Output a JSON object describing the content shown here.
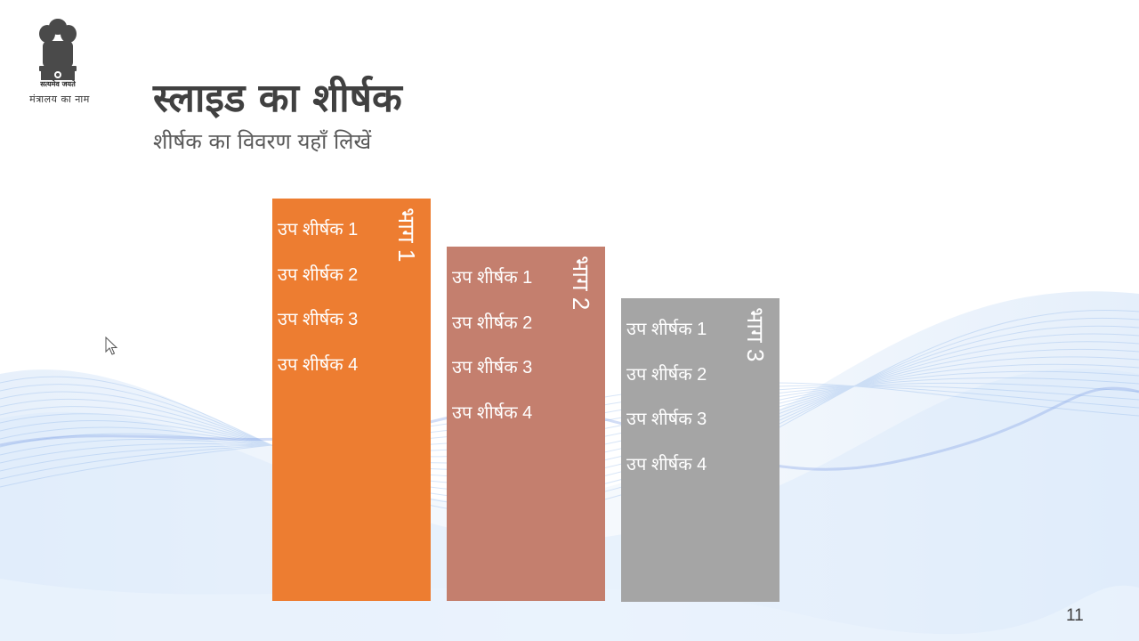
{
  "header": {
    "emblem_motto": "सत्यमेव जयते",
    "ministry": "मंत्रालय का नाम"
  },
  "slide": {
    "title": "स्लाइड का शीर्षक",
    "subtitle": "शीर्षक का विवरण यहाँ लिखें",
    "page_number": "11"
  },
  "columns": [
    {
      "label": "भाग 1",
      "color": "#ED7D31",
      "items": [
        "उप शीर्षक 1",
        "उप शीर्षक 2",
        "उप शीर्षक 3",
        "उप शीर्षक 4"
      ]
    },
    {
      "label": "भाग 2",
      "color": "#C47F6E",
      "items": [
        "उप शीर्षक 1",
        "उप शीर्षक 2",
        "उप शीर्षक 3",
        "उप शीर्षक 4"
      ]
    },
    {
      "label": "भाग 3",
      "color": "#A5A5A5",
      "items": [
        "उप शीर्षक 1",
        "उप शीर्षक 2",
        "उप शीर्षक 3",
        "उप शीर्षक 4"
      ]
    }
  ],
  "icons": {
    "emblem": "national-emblem-icon",
    "cursor": "mouse-pointer-icon"
  }
}
